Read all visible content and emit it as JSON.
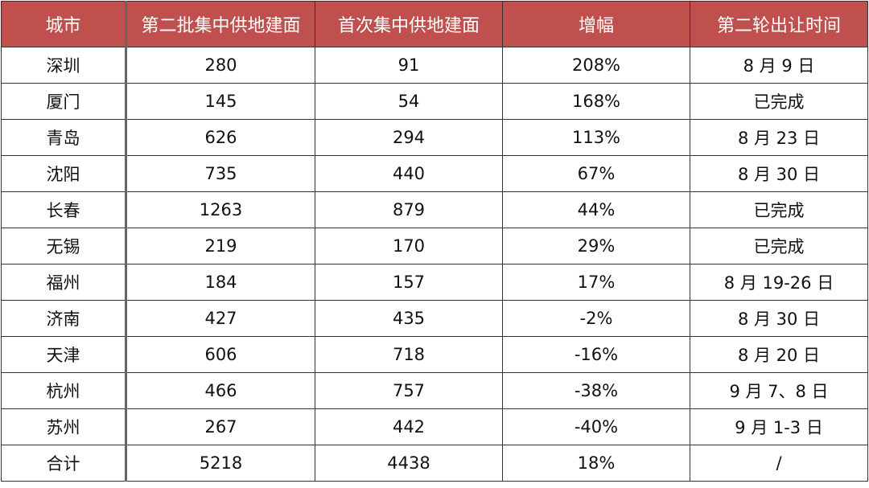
{
  "chart_data": {
    "type": "table",
    "columns": [
      "城市",
      "第二批集中供地建面",
      "首次集中供地建面",
      "增幅",
      "第二轮出让时间"
    ],
    "rows": [
      [
        "深圳",
        "280",
        "91",
        "208%",
        "8 月 9 日"
      ],
      [
        "厦门",
        "145",
        "54",
        "168%",
        "已完成"
      ],
      [
        "青岛",
        "626",
        "294",
        "113%",
        "8 月 23 日"
      ],
      [
        "沈阳",
        "735",
        "440",
        "67%",
        "8 月 30 日"
      ],
      [
        "长春",
        "1263",
        "879",
        "44%",
        "已完成"
      ],
      [
        "无锡",
        "219",
        "170",
        "29%",
        "已完成"
      ],
      [
        "福州",
        "184",
        "157",
        "17%",
        "8 月 19-26 日"
      ],
      [
        "济南",
        "427",
        "435",
        "-2%",
        "8 月 30 日"
      ],
      [
        "天津",
        "606",
        "718",
        "-16%",
        "8 月 20 日"
      ],
      [
        "杭州",
        "466",
        "757",
        "-38%",
        "9 月 7、8 日"
      ],
      [
        "苏州",
        "267",
        "442",
        "-40%",
        "9 月 1-3 日"
      ],
      [
        "合计",
        "5218",
        "4438",
        "18%",
        "/"
      ]
    ],
    "header_color": "#C0504D"
  }
}
